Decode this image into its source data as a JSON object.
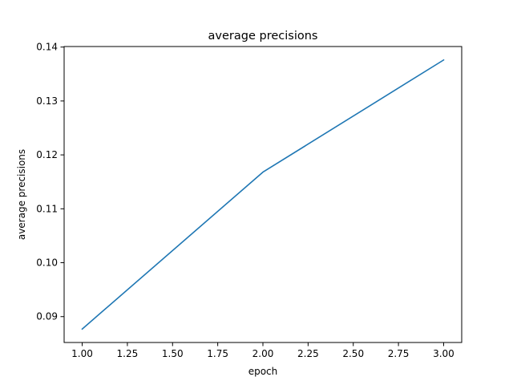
{
  "chart_data": {
    "type": "line",
    "title": "average precisions",
    "xlabel": "epoch",
    "ylabel": "average precisions",
    "x": [
      1.0,
      2.0,
      3.0
    ],
    "series": [
      {
        "values": [
          0.0877,
          0.1168,
          0.1376
        ],
        "color": "#1f77b4"
      }
    ],
    "xlim": [
      0.9,
      3.1
    ],
    "ylim": [
      0.0852,
      0.1401
    ],
    "xticks": [
      "1.00",
      "1.25",
      "1.50",
      "1.75",
      "2.00",
      "2.25",
      "2.50",
      "2.75",
      "3.00"
    ],
    "yticks": [
      "0.09",
      "0.10",
      "0.11",
      "0.12",
      "0.13",
      "0.14"
    ],
    "grid": false,
    "legend": false
  }
}
